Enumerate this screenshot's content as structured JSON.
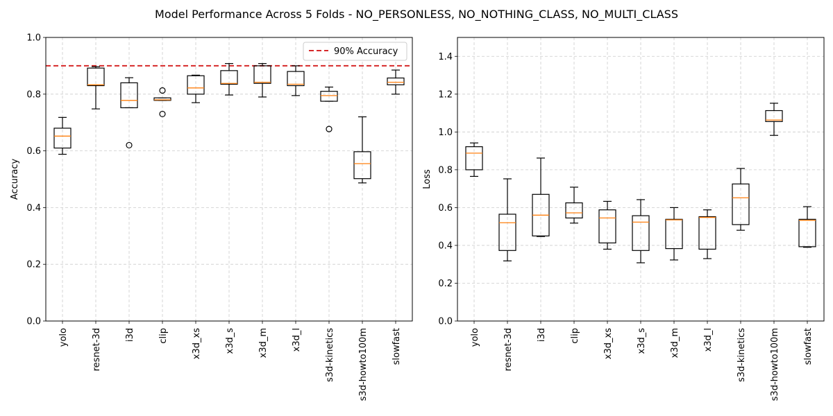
{
  "figure": {
    "suptitle": "Model Performance Across 5 Folds - NO_PERSONLESS, NO_NOTHING_CLASS, NO_MULTI_CLASS",
    "colors": {
      "box": "#000000",
      "median": "#ff7f0e",
      "threshold": "#d62728",
      "grid": "#cccccc"
    }
  },
  "chart_data": [
    {
      "type": "box",
      "ylabel": "Accuracy",
      "xlabel": "",
      "ylim": [
        0.0,
        1.0
      ],
      "yticks": [
        "0.0",
        "0.2",
        "0.4",
        "0.6",
        "0.8",
        "1.0"
      ],
      "grid": true,
      "legend": {
        "placement": "top-right",
        "entries": [
          "90% Accuracy"
        ]
      },
      "reference_line": {
        "value": 0.9,
        "label": "90% Accuracy",
        "style": "dashed"
      },
      "categories": [
        "yolo",
        "resnet-3d",
        "i3d",
        "clip",
        "x3d_xs",
        "x3d_s",
        "x3d_m",
        "x3d_l",
        "s3d-kinetics",
        "s3d-howto100m",
        "slowfast"
      ],
      "boxes": [
        {
          "whislo": 0.588,
          "q1": 0.61,
          "med": 0.652,
          "q3": 0.68,
          "whishi": 0.718,
          "fliers": []
        },
        {
          "whislo": 0.748,
          "q1": 0.83,
          "med": 0.833,
          "q3": 0.892,
          "whishi": 0.897,
          "fliers": []
        },
        {
          "whislo": 0.752,
          "q1": 0.752,
          "med": 0.778,
          "q3": 0.84,
          "whishi": 0.858,
          "fliers": [
            0.62
          ]
        },
        {
          "whislo": 0.778,
          "q1": 0.778,
          "med": 0.78,
          "q3": 0.787,
          "whishi": 0.787,
          "fliers": [
            0.813,
            0.73
          ]
        },
        {
          "whislo": 0.77,
          "q1": 0.8,
          "med": 0.822,
          "q3": 0.865,
          "whishi": 0.867,
          "fliers": []
        },
        {
          "whislo": 0.797,
          "q1": 0.835,
          "med": 0.838,
          "q3": 0.883,
          "whishi": 0.908,
          "fliers": []
        },
        {
          "whislo": 0.79,
          "q1": 0.838,
          "med": 0.842,
          "q3": 0.9,
          "whishi": 0.908,
          "fliers": []
        },
        {
          "whislo": 0.795,
          "q1": 0.83,
          "med": 0.835,
          "q3": 0.88,
          "whishi": 0.9,
          "fliers": []
        },
        {
          "whislo": 0.775,
          "q1": 0.775,
          "med": 0.795,
          "q3": 0.81,
          "whishi": 0.825,
          "fliers": [
            0.677
          ]
        },
        {
          "whislo": 0.487,
          "q1": 0.502,
          "med": 0.555,
          "q3": 0.597,
          "whishi": 0.72,
          "fliers": []
        },
        {
          "whislo": 0.8,
          "q1": 0.833,
          "med": 0.842,
          "q3": 0.857,
          "whishi": 0.885,
          "fliers": []
        }
      ]
    },
    {
      "type": "box",
      "ylabel": "Loss",
      "xlabel": "",
      "ylim": [
        0.0,
        1.5
      ],
      "yticks": [
        "0.0",
        "0.2",
        "0.4",
        "0.6",
        "0.8",
        "1.0",
        "1.2",
        "1.4"
      ],
      "grid": true,
      "categories": [
        "yolo",
        "resnet-3d",
        "i3d",
        "clip",
        "x3d_xs",
        "x3d_s",
        "x3d_m",
        "x3d_l",
        "s3d-kinetics",
        "s3d-howto100m",
        "slowfast"
      ],
      "boxes": [
        {
          "whislo": 0.765,
          "q1": 0.8,
          "med": 0.888,
          "q3": 0.922,
          "whishi": 0.942,
          "fliers": []
        },
        {
          "whislo": 0.318,
          "q1": 0.373,
          "med": 0.52,
          "q3": 0.565,
          "whishi": 0.752,
          "fliers": []
        },
        {
          "whislo": 0.447,
          "q1": 0.45,
          "med": 0.56,
          "q3": 0.67,
          "whishi": 0.862,
          "fliers": []
        },
        {
          "whislo": 0.518,
          "q1": 0.545,
          "med": 0.572,
          "q3": 0.625,
          "whishi": 0.708,
          "fliers": []
        },
        {
          "whislo": 0.38,
          "q1": 0.413,
          "med": 0.545,
          "q3": 0.588,
          "whishi": 0.633,
          "fliers": []
        },
        {
          "whislo": 0.308,
          "q1": 0.373,
          "med": 0.523,
          "q3": 0.557,
          "whishi": 0.642,
          "fliers": []
        },
        {
          "whislo": 0.323,
          "q1": 0.383,
          "med": 0.535,
          "q3": 0.538,
          "whishi": 0.6,
          "fliers": []
        },
        {
          "whislo": 0.33,
          "q1": 0.38,
          "med": 0.548,
          "q3": 0.552,
          "whishi": 0.588,
          "fliers": []
        },
        {
          "whislo": 0.48,
          "q1": 0.51,
          "med": 0.652,
          "q3": 0.725,
          "whishi": 0.807,
          "fliers": []
        },
        {
          "whislo": 0.982,
          "q1": 1.055,
          "med": 1.063,
          "q3": 1.113,
          "whishi": 1.152,
          "fliers": []
        },
        {
          "whislo": 0.39,
          "q1": 0.393,
          "med": 0.533,
          "q3": 0.538,
          "whishi": 0.605,
          "fliers": []
        }
      ]
    }
  ]
}
